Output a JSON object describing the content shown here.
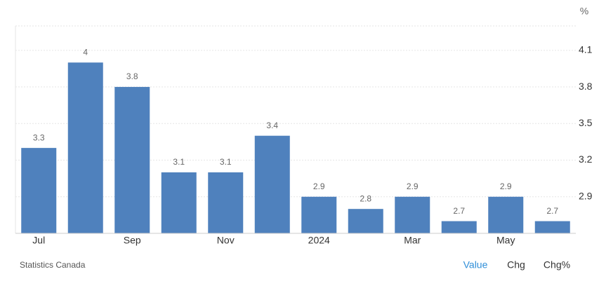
{
  "chart_data": {
    "type": "bar",
    "unit": "%",
    "categories": [
      "Jul",
      null,
      "Sep",
      null,
      "Nov",
      null,
      "2024",
      null,
      "Mar",
      null,
      "May",
      null
    ],
    "values": [
      3.3,
      4,
      3.8,
      3.1,
      3.1,
      3.4,
      2.9,
      2.8,
      2.9,
      2.7,
      2.9,
      2.7
    ],
    "color": "#4f81bd",
    "ylim": [
      2.6,
      4.3
    ],
    "yticks": [
      2.9,
      3.2,
      3.5,
      3.8,
      4.1
    ],
    "grid": true
  },
  "footer": {
    "source": "Statistics Canada",
    "buttons": [
      "Value",
      "Chg",
      "Chg%"
    ]
  }
}
